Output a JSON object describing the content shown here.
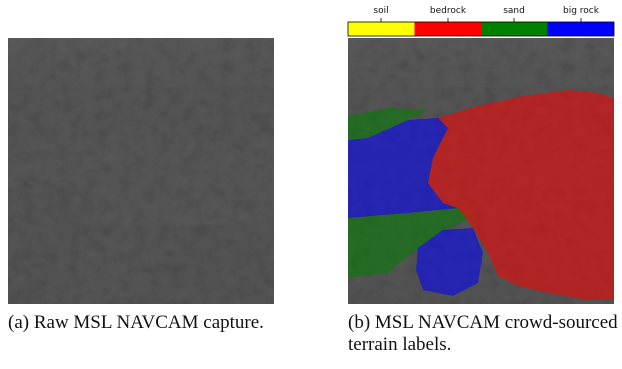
{
  "figure_a": {
    "caption": "(a) Raw MSL NAVCAM capture."
  },
  "figure_b": {
    "caption": "(b) MSL NAVCAM crowd-sourced terrain labels.",
    "legend": [
      {
        "label": "soil",
        "color": "#ffff00"
      },
      {
        "label": "bedrock",
        "color": "#ff0000"
      },
      {
        "label": "sand",
        "color": "#008000"
      },
      {
        "label": "big rock",
        "color": "#0000ff"
      }
    ]
  }
}
